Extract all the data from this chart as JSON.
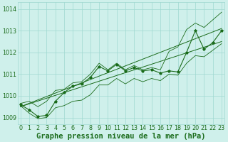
{
  "title": "Graphe pression niveau de la mer (hPa)",
  "x_values": [
    0,
    1,
    2,
    3,
    4,
    5,
    6,
    7,
    8,
    9,
    10,
    11,
    12,
    13,
    14,
    15,
    16,
    17,
    18,
    19,
    20,
    21,
    22,
    23
  ],
  "y_main": [
    1009.6,
    1009.35,
    1009.05,
    1009.1,
    1009.75,
    1010.15,
    1010.45,
    1010.55,
    1010.85,
    1011.35,
    1011.15,
    1011.45,
    1011.15,
    1011.3,
    1011.15,
    1011.2,
    1011.05,
    1011.15,
    1011.1,
    1012.0,
    1013.0,
    1012.15,
    1012.45,
    1013.0
  ],
  "y_high": [
    1009.65,
    1009.75,
    1009.5,
    1009.75,
    1010.25,
    1010.3,
    1010.6,
    1010.65,
    1011.0,
    1011.5,
    1011.2,
    1011.5,
    1011.2,
    1011.4,
    1011.2,
    1011.3,
    1011.2,
    1012.05,
    1012.25,
    1013.05,
    1013.35,
    1013.15,
    1013.5,
    1013.85
  ],
  "y_low": [
    1009.55,
    1009.2,
    1008.95,
    1009.0,
    1009.45,
    1009.55,
    1009.75,
    1009.8,
    1010.05,
    1010.5,
    1010.5,
    1010.8,
    1010.55,
    1010.8,
    1010.65,
    1010.8,
    1010.7,
    1011.0,
    1010.95,
    1011.5,
    1011.85,
    1011.8,
    1012.1,
    1012.4
  ],
  "trend1_x": [
    0,
    23
  ],
  "trend1_y": [
    1009.5,
    1013.1
  ],
  "trend2_x": [
    0,
    23
  ],
  "trend2_y": [
    1009.5,
    1012.5
  ],
  "ylim": [
    1008.7,
    1014.3
  ],
  "xlim": [
    -0.3,
    23.3
  ],
  "yticks": [
    1009,
    1010,
    1011,
    1012,
    1013,
    1014
  ],
  "xticks": [
    0,
    1,
    2,
    3,
    4,
    5,
    6,
    7,
    8,
    9,
    10,
    11,
    12,
    13,
    14,
    15,
    16,
    17,
    18,
    19,
    20,
    21,
    22,
    23
  ],
  "line_color": "#1a6b1a",
  "bg_color": "#cff0eb",
  "grid_color": "#9fd8d0",
  "title_color": "#1a6b1a",
  "title_fontsize": 7.5,
  "tick_fontsize": 5.8
}
